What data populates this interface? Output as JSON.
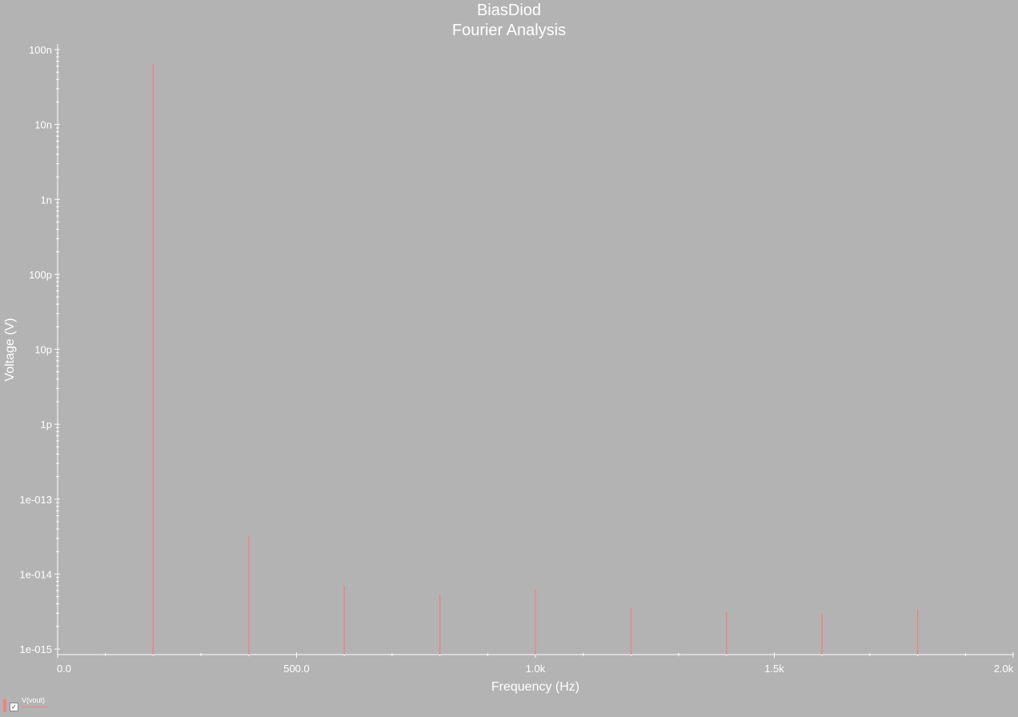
{
  "window": {
    "title_line1": "BiasDiod",
    "title_line2": "Fourier Analysis"
  },
  "legend": {
    "items": [
      {
        "label": "V(vout)",
        "checked": true,
        "color": "#f08080"
      }
    ]
  },
  "chart_data": {
    "type": "bar",
    "title": "BiasDiod",
    "subtitle": "Fourier Analysis",
    "xlabel": "Frequency (Hz)",
    "ylabel": "Voltage (V)",
    "xlim": [
      0,
      2000
    ],
    "ylim": [
      1e-15,
      1.2e-07
    ],
    "yscale": "log",
    "grid": false,
    "legend_position": "bottom-left",
    "background": "#b3b3b3",
    "series_color": "#f08080",
    "x_ticks": [
      {
        "value": 0,
        "label": "0.0"
      },
      {
        "value": 500,
        "label": "500.0"
      },
      {
        "value": 1000,
        "label": "1.0k"
      },
      {
        "value": 1500,
        "label": "1.5k"
      },
      {
        "value": 2000,
        "label": "2.0k"
      }
    ],
    "y_ticks": [
      {
        "value": 1e-07,
        "label": "100n"
      },
      {
        "value": 1e-08,
        "label": "10n"
      },
      {
        "value": 1e-09,
        "label": "1n"
      },
      {
        "value": 1e-10,
        "label": "100p"
      },
      {
        "value": 1e-11,
        "label": "10p"
      },
      {
        "value": 1e-12,
        "label": "1p"
      },
      {
        "value": 1e-13,
        "label": "1e-013"
      },
      {
        "value": 1e-14,
        "label": "1e-014"
      },
      {
        "value": 1e-15,
        "label": "1e-015"
      }
    ],
    "series": [
      {
        "name": "V(vout)",
        "x": [
          200,
          400,
          600,
          800,
          1000,
          1200,
          1400,
          1600,
          1800
        ],
        "values": [
          6.5e-08,
          3.2e-14,
          7e-15,
          5.4e-15,
          6.2e-15,
          3.5e-15,
          3.1e-15,
          3e-15,
          3.4e-15
        ]
      }
    ]
  }
}
